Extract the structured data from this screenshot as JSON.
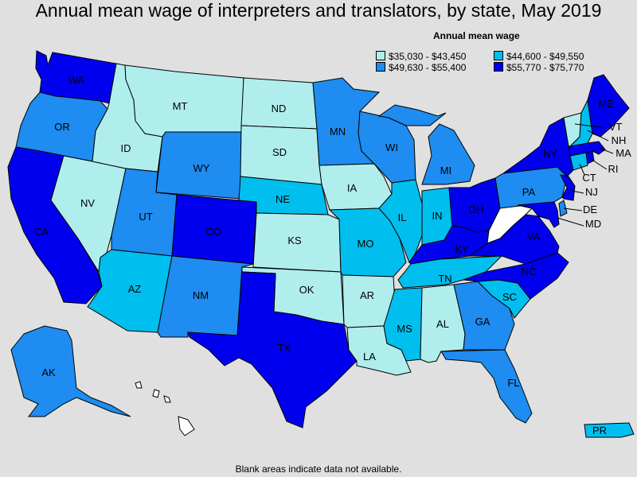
{
  "title": "Annual mean wage of interpreters and translators, by state, May 2019",
  "legend": {
    "title": "Annual mean wage",
    "items": [
      {
        "label": "$35,030 - $43,450",
        "color": "#b0eeee"
      },
      {
        "label": "$44,600 - $49,550",
        "color": "#00bfee"
      },
      {
        "label": "$49,630 - $55,400",
        "color": "#1e8cf0"
      },
      {
        "label": "$55,770 - $75,770",
        "color": "#0000ee"
      }
    ]
  },
  "no_data_color": "#ffffff",
  "footnote": "Blank areas indicate data not available.",
  "states": {
    "WA": {
      "label": "WA",
      "range": 3
    },
    "OR": {
      "label": "OR",
      "range": 2
    },
    "CA": {
      "label": "CA",
      "range": 3
    },
    "NV": {
      "label": "NV",
      "range": 0
    },
    "ID": {
      "label": "ID",
      "range": 0
    },
    "MT": {
      "label": "MT",
      "range": 0
    },
    "WY": {
      "label": "WY",
      "range": 2
    },
    "UT": {
      "label": "UT",
      "range": 2
    },
    "AZ": {
      "label": "AZ",
      "range": 1
    },
    "CO": {
      "label": "CO",
      "range": 3
    },
    "NM": {
      "label": "NM",
      "range": 2
    },
    "ND": {
      "label": "ND",
      "range": 0
    },
    "SD": {
      "label": "SD",
      "range": 0
    },
    "NE": {
      "label": "NE",
      "range": 1
    },
    "KS": {
      "label": "KS",
      "range": 0
    },
    "OK": {
      "label": "OK",
      "range": 0
    },
    "TX": {
      "label": "TX",
      "range": 3
    },
    "MN": {
      "label": "MN",
      "range": 2
    },
    "IA": {
      "label": "IA",
      "range": 0
    },
    "MO": {
      "label": "MO",
      "range": 1
    },
    "AR": {
      "label": "AR",
      "range": 0
    },
    "LA": {
      "label": "LA",
      "range": 0
    },
    "WI": {
      "label": "WI",
      "range": 2
    },
    "IL": {
      "label": "IL",
      "range": 1
    },
    "MI": {
      "label": "MI",
      "range": 2
    },
    "IN": {
      "label": "IN",
      "range": 1
    },
    "OH": {
      "label": "OH",
      "range": 3
    },
    "KY": {
      "label": "KY",
      "range": 3
    },
    "TN": {
      "label": "TN",
      "range": 1
    },
    "MS": {
      "label": "MS",
      "range": 1
    },
    "AL": {
      "label": "AL",
      "range": 0
    },
    "GA": {
      "label": "GA",
      "range": 2
    },
    "FL": {
      "label": "FL",
      "range": 2
    },
    "SC": {
      "label": "SC",
      "range": 1
    },
    "NC": {
      "label": "NC",
      "range": 3
    },
    "VA": {
      "label": "VA",
      "range": 3
    },
    "WV": {
      "label": "",
      "range": null
    },
    "PA": {
      "label": "PA",
      "range": 2
    },
    "NY": {
      "label": "NY",
      "range": 3
    },
    "NJ": {
      "label": "NJ",
      "range": 3
    },
    "DE": {
      "label": "DE",
      "range": 2
    },
    "MD": {
      "label": "MD",
      "range": 3
    },
    "CT": {
      "label": "CT",
      "range": 1
    },
    "RI": {
      "label": "RI",
      "range": 3
    },
    "MA": {
      "label": "MA",
      "range": 3
    },
    "VT": {
      "label": "VT",
      "range": 0
    },
    "NH": {
      "label": "NH",
      "range": 1
    },
    "ME": {
      "label": "ME",
      "range": 3
    },
    "AK": {
      "label": "AK",
      "range": 2
    },
    "HI": {
      "label": "",
      "range": null
    },
    "PR": {
      "label": "PR",
      "range": 1
    }
  }
}
